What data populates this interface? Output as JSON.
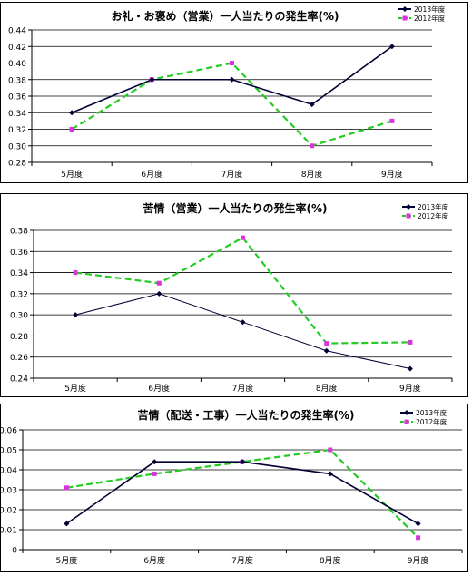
{
  "chart_data": [
    {
      "type": "line",
      "title": "お礼・お褒め（営業）一人当たりの発生率(%)",
      "categories": [
        "5月度",
        "6月度",
        "7月度",
        "8月度",
        "9月度"
      ],
      "series": [
        {
          "name": "2013年度",
          "color": "#000033",
          "marker": "diamond",
          "dash": "solid",
          "values": [
            0.34,
            0.38,
            0.38,
            0.35,
            0.42
          ]
        },
        {
          "name": "2012年度",
          "color": "#22cc22",
          "marker": "square",
          "marker_color": "#dd33dd",
          "dash": "dashed",
          "values": [
            0.32,
            0.38,
            0.4,
            0.3,
            0.33
          ]
        }
      ],
      "ylim": [
        0.28,
        0.44
      ],
      "yticks": [
        "0.28",
        "0.30",
        "0.32",
        "0.34",
        "0.36",
        "0.38",
        "0.40",
        "0.42",
        "0.44"
      ],
      "grid": true,
      "legend": "top-right"
    },
    {
      "type": "line",
      "title": "苦情（営業）一人当たりの発生率(%)",
      "categories": [
        "5月度",
        "6月度",
        "7月度",
        "8月度",
        "9月度"
      ],
      "series": [
        {
          "name": "2013年度",
          "color": "#000033",
          "marker": "diamond",
          "dash": "solid",
          "values": [
            0.3,
            0.32,
            0.293,
            0.266,
            0.249
          ]
        },
        {
          "name": "2012年度",
          "color": "#22cc22",
          "marker": "square",
          "marker_color": "#dd33dd",
          "dash": "dashed",
          "values": [
            0.34,
            0.33,
            0.373,
            0.273,
            0.274
          ]
        }
      ],
      "ylim": [
        0.24,
        0.38
      ],
      "yticks": [
        "0.24",
        "0.26",
        "0.28",
        "0.30",
        "0.32",
        "0.34",
        "0.36",
        "0.38"
      ],
      "grid": true,
      "legend": "top-right"
    },
    {
      "type": "line",
      "title": "苦情（配送・工事）一人当たりの発生率(%)",
      "categories": [
        "5月度",
        "6月度",
        "7月度",
        "8月度",
        "9月度"
      ],
      "series": [
        {
          "name": "2013年度",
          "color": "#000033",
          "marker": "diamond",
          "dash": "solid",
          "values": [
            0.013,
            0.044,
            0.044,
            0.038,
            0.013
          ]
        },
        {
          "name": "2012年度",
          "color": "#22cc22",
          "marker": "square",
          "marker_color": "#dd33dd",
          "dash": "dashed",
          "values": [
            0.031,
            0.038,
            0.044,
            0.05,
            0.006
          ]
        }
      ],
      "ylim": [
        0,
        0.06
      ],
      "yticks": [
        "0",
        "0.01",
        "0.02",
        "0.03",
        "0.04",
        "0.05",
        "0.06"
      ],
      "grid": true,
      "legend": "top-right"
    }
  ]
}
